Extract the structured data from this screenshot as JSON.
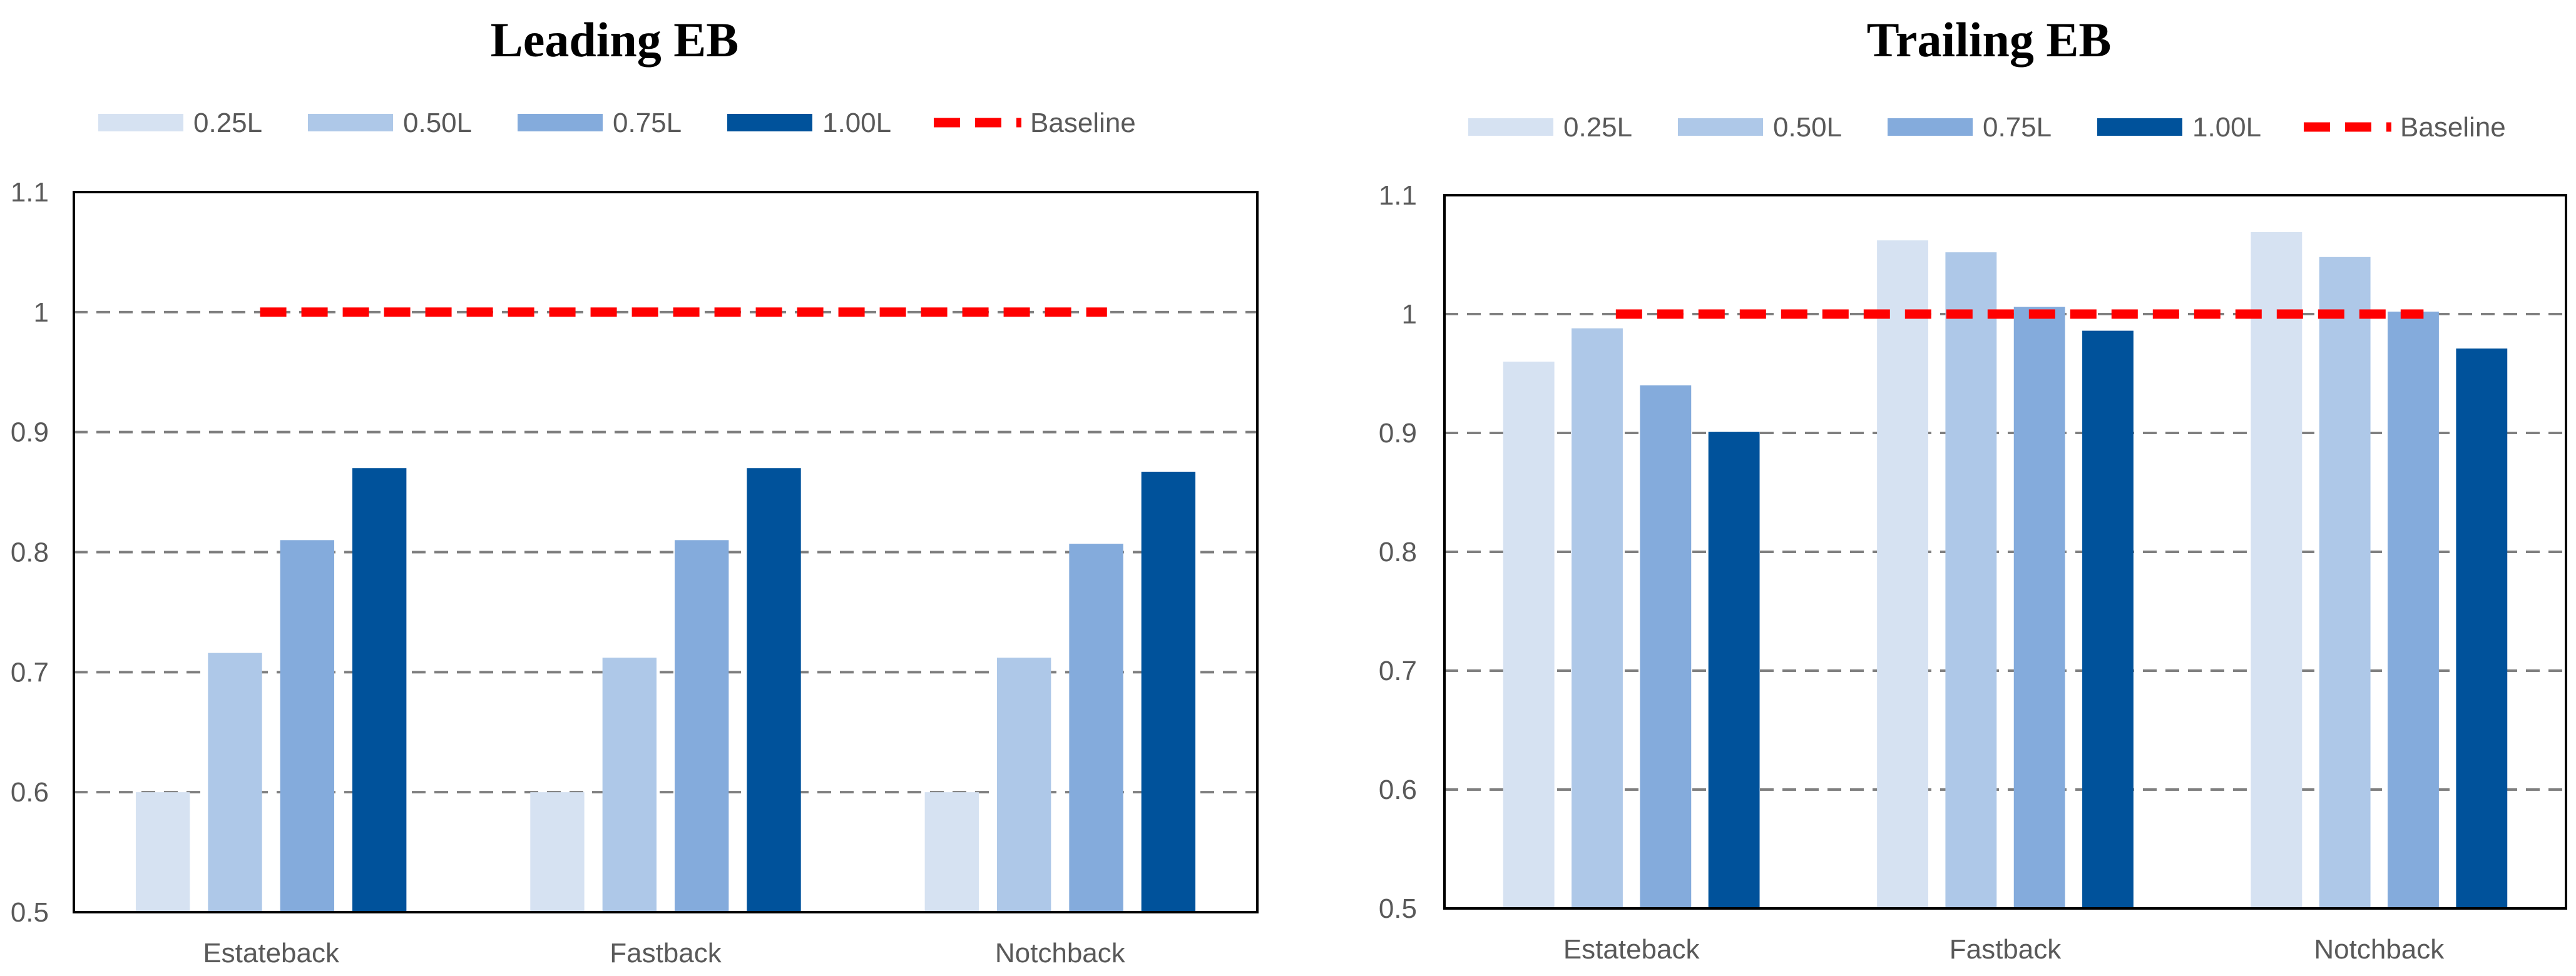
{
  "colors": {
    "series": [
      "#d6e2f2",
      "#aec8e8",
      "#84abdc",
      "#00529b"
    ],
    "baseline": "#ff0000",
    "grid": "#7f7f7f",
    "frame": "#000000"
  },
  "chart_data": [
    {
      "type": "bar",
      "title": "Leading EB",
      "categories": [
        "Estateback",
        "Fastback",
        "Notchback"
      ],
      "ylim": [
        0.5,
        1.1
      ],
      "yticks": [
        "0.5",
        "0.6",
        "0.7",
        "0.8",
        "0.9",
        "1",
        "1.1"
      ],
      "ytick_values": [
        0.5,
        0.6,
        0.7,
        0.8,
        0.9,
        1.0,
        1.1
      ],
      "grid": true,
      "legend_position": "top",
      "series": [
        {
          "name": "0.25L",
          "values": [
            0.6,
            0.6,
            0.6
          ]
        },
        {
          "name": "0.50L",
          "values": [
            0.716,
            0.712,
            0.712
          ]
        },
        {
          "name": "0.75L",
          "values": [
            0.81,
            0.81,
            0.807
          ]
        },
        {
          "name": "1.00L",
          "values": [
            0.87,
            0.87,
            0.867
          ]
        }
      ],
      "baseline": {
        "name": "Baseline",
        "value": 1.0
      }
    },
    {
      "type": "bar",
      "title": "Trailing EB",
      "categories": [
        "Estateback",
        "Fastback",
        "Notchback"
      ],
      "ylim": [
        0.5,
        1.1
      ],
      "yticks": [
        "0.5",
        "0.6",
        "0.7",
        "0.8",
        "0.9",
        "1",
        "1.1"
      ],
      "ytick_values": [
        0.5,
        0.6,
        0.7,
        0.8,
        0.9,
        1.0,
        1.1
      ],
      "grid": true,
      "legend_position": "top",
      "series": [
        {
          "name": "0.25L",
          "values": [
            0.96,
            1.062,
            1.069
          ]
        },
        {
          "name": "0.50L",
          "values": [
            0.988,
            1.052,
            1.048
          ]
        },
        {
          "name": "0.75L",
          "values": [
            0.94,
            1.006,
            1.002
          ]
        },
        {
          "name": "1.00L",
          "values": [
            0.901,
            0.986,
            0.971
          ]
        }
      ],
      "baseline": {
        "name": "Baseline",
        "value": 1.0
      }
    }
  ]
}
